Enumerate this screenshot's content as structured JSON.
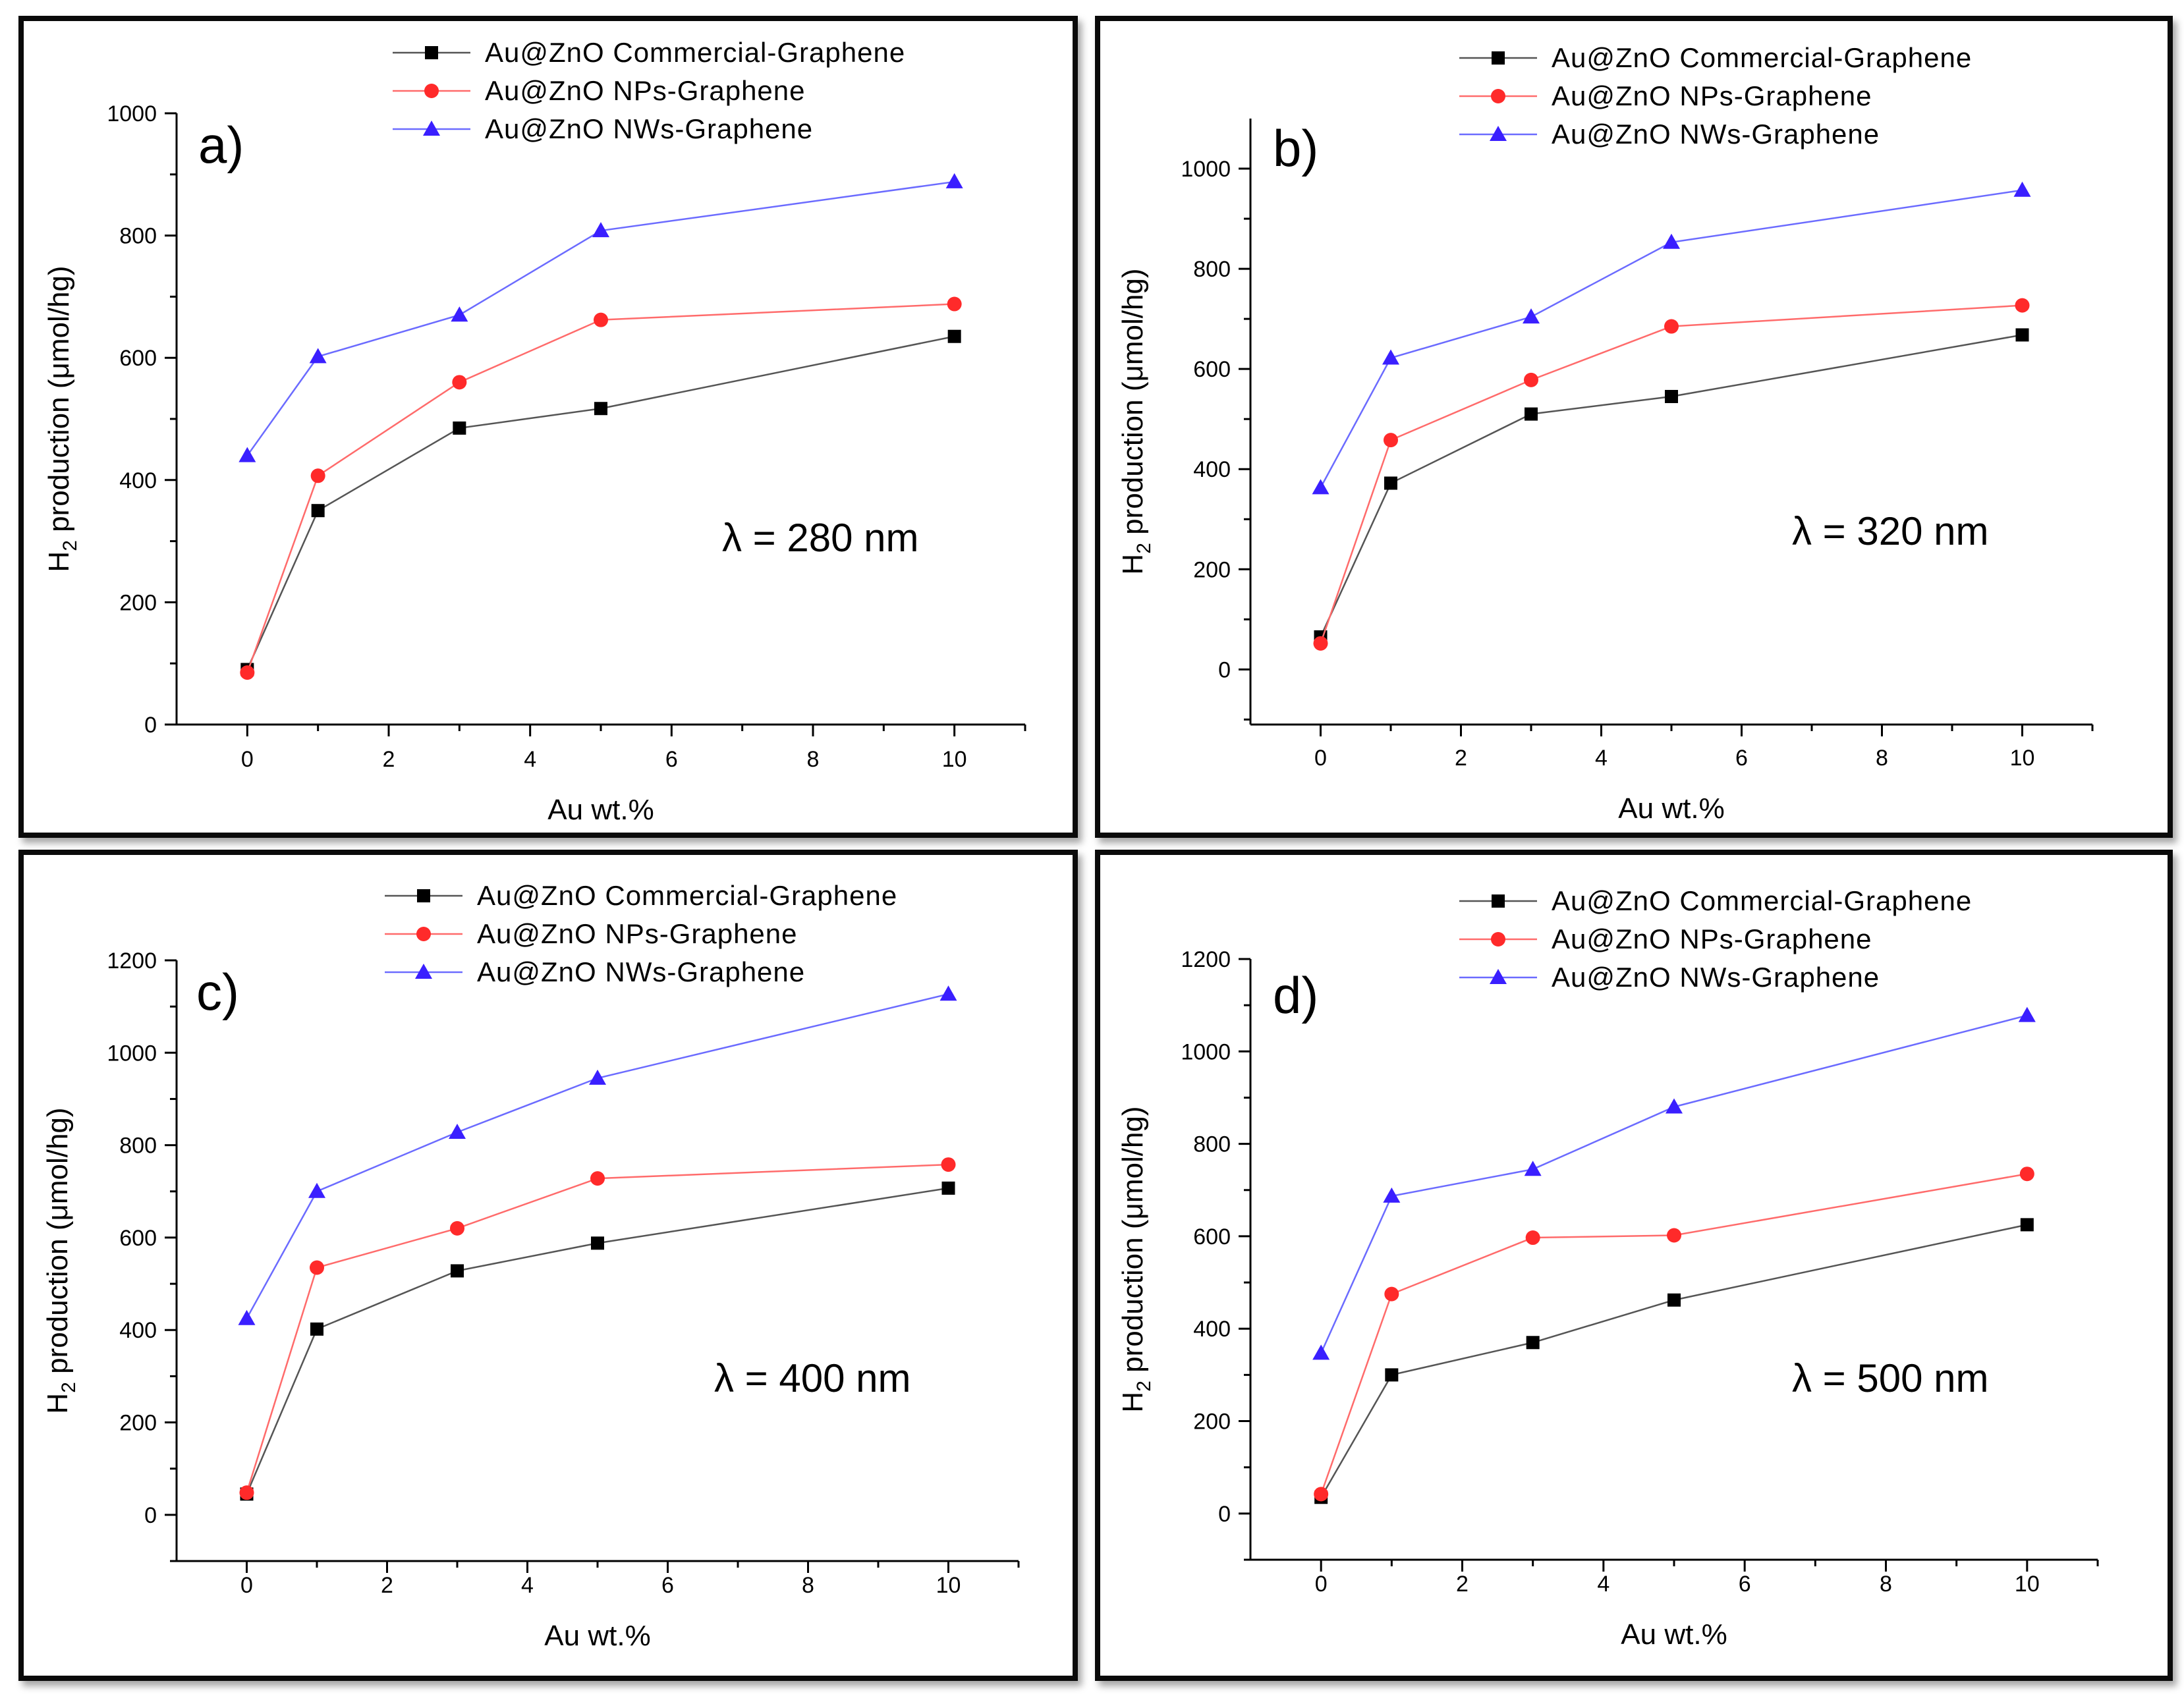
{
  "colors": {
    "commercial": "#000000",
    "nps": "#ff2a2a",
    "nws": "#3a1fff",
    "commercial_line": "#555555",
    "nps_line": "#ff6b6b",
    "nws_line": "#6b6bff"
  },
  "chart_data": [
    {
      "type": "line",
      "panel_letter": "a)",
      "annotation": "λ = 280 nm",
      "xlabel": "Au wt.%",
      "ylabel_main": "H",
      "ylabel_sub": "2",
      "ylabel_rest": " production (μmol/hg)",
      "xlim": [
        -1,
        11
      ],
      "ylim": [
        0,
        1000
      ],
      "xticks": [
        0,
        2,
        4,
        6,
        8,
        10
      ],
      "yticks": [
        0,
        200,
        400,
        600,
        800,
        1000
      ],
      "x": [
        0,
        1,
        3,
        5,
        10
      ],
      "series": [
        {
          "name": "Au@ZnO Commercial-Graphene",
          "marker": "square",
          "values": [
            90,
            350,
            485,
            517,
            635
          ]
        },
        {
          "name": "Au@ZnO NPs-Graphene",
          "marker": "circle",
          "values": [
            85,
            407,
            560,
            662,
            688
          ]
        },
        {
          "name": "Au@ZnO NWs-Graphene",
          "marker": "triangle",
          "values": [
            440,
            602,
            670,
            808,
            888
          ]
        }
      ],
      "legend": "top-right"
    },
    {
      "type": "line",
      "panel_letter": "b)",
      "annotation": "λ = 320 nm",
      "xlabel": "Au wt.%",
      "ylabel_main": "H",
      "ylabel_sub": "2",
      "ylabel_rest": " production (μmol/hg)",
      "xlim": [
        -1,
        11
      ],
      "ylim": [
        -110,
        1100
      ],
      "xticks": [
        0,
        2,
        4,
        6,
        8,
        10
      ],
      "yticks": [
        0,
        200,
        400,
        600,
        800,
        1000
      ],
      "x": [
        0,
        1,
        3,
        5,
        10
      ],
      "series": [
        {
          "name": "Au@ZnO Commercial-Graphene",
          "marker": "square",
          "values": [
            65,
            372,
            510,
            545,
            668
          ]
        },
        {
          "name": "Au@ZnO NPs-Graphene",
          "marker": "circle",
          "values": [
            52,
            458,
            578,
            685,
            727
          ]
        },
        {
          "name": "Au@ZnO NWs-Graphene",
          "marker": "triangle",
          "values": [
            363,
            622,
            704,
            853,
            957
          ]
        }
      ],
      "legend": "top-right"
    },
    {
      "type": "line",
      "panel_letter": "c)",
      "annotation": "λ = 400 nm",
      "xlabel": "Au wt.%",
      "ylabel_main": "H",
      "ylabel_sub": "2",
      "ylabel_rest": " production (μmol/hg)",
      "xlim": [
        -1,
        11
      ],
      "ylim": [
        -100,
        1200
      ],
      "xticks": [
        0,
        2,
        4,
        6,
        8,
        10
      ],
      "yticks": [
        0,
        200,
        400,
        600,
        800,
        1000,
        1200
      ],
      "x": [
        0,
        1,
        3,
        5,
        10
      ],
      "series": [
        {
          "name": "Au@ZnO Commercial-Graphene",
          "marker": "square",
          "values": [
            45,
            402,
            528,
            588,
            707
          ]
        },
        {
          "name": "Au@ZnO NPs-Graphene",
          "marker": "circle",
          "values": [
            48,
            535,
            620,
            728,
            758
          ]
        },
        {
          "name": "Au@ZnO NWs-Graphene",
          "marker": "triangle",
          "values": [
            425,
            700,
            828,
            945,
            1127
          ]
        }
      ],
      "legend": "top-right"
    },
    {
      "type": "line",
      "panel_letter": "d)",
      "annotation": "λ = 500 nm",
      "xlabel": "Au wt.%",
      "ylabel_main": "H",
      "ylabel_sub": "2",
      "ylabel_rest": " production (μmol/hg)",
      "xlim": [
        -1,
        11
      ],
      "ylim": [
        -100,
        1200
      ],
      "xticks": [
        0,
        2,
        4,
        6,
        8,
        10
      ],
      "yticks": [
        0,
        200,
        400,
        600,
        800,
        1000,
        1200
      ],
      "x": [
        0,
        1,
        3,
        5,
        10
      ],
      "series": [
        {
          "name": "Au@ZnO Commercial-Graphene",
          "marker": "square",
          "values": [
            35,
            300,
            370,
            462,
            625
          ]
        },
        {
          "name": "Au@ZnO NPs-Graphene",
          "marker": "circle",
          "values": [
            42,
            475,
            597,
            602,
            735
          ]
        },
        {
          "name": "Au@ZnO NWs-Graphene",
          "marker": "triangle",
          "values": [
            347,
            687,
            745,
            880,
            1078
          ]
        }
      ],
      "legend": "top-right"
    }
  ]
}
